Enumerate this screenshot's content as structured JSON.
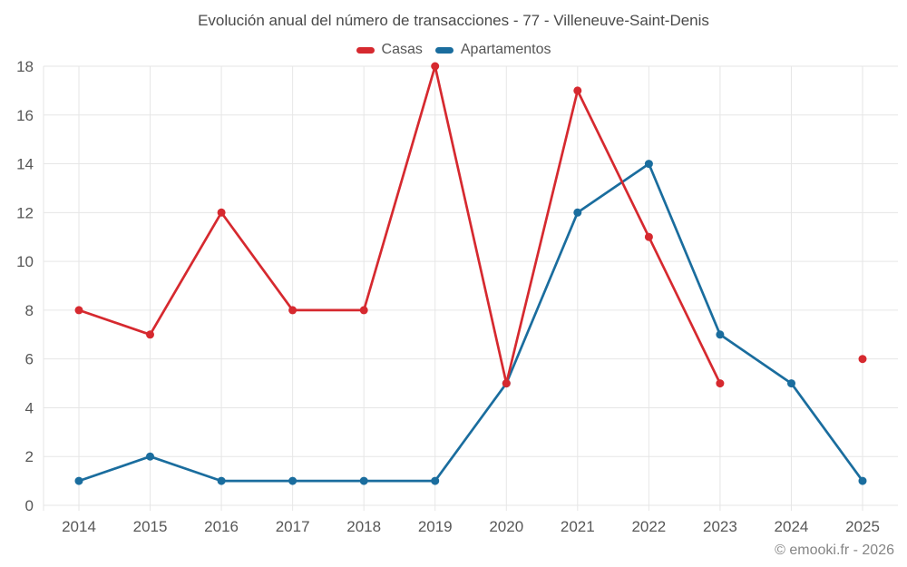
{
  "page": {
    "footer": "© emooki.fr - 2026"
  },
  "chart_data": {
    "type": "line",
    "title": "Evolución anual del número de transacciones - 77 - Villeneuve-Saint-Denis",
    "categories": [
      "2014",
      "2015",
      "2016",
      "2017",
      "2018",
      "2019",
      "2020",
      "2021",
      "2022",
      "2023",
      "2024",
      "2025"
    ],
    "series": [
      {
        "name": "Casas",
        "color": "#d6292f",
        "values": [
          8,
          7,
          12,
          8,
          8,
          18,
          5,
          17,
          11,
          5,
          null,
          6
        ]
      },
      {
        "name": "Apartamentos",
        "color": "#1a6d9e",
        "values": [
          1,
          2,
          1,
          1,
          1,
          1,
          5,
          12,
          14,
          7,
          5,
          1
        ]
      }
    ],
    "xlabel": "",
    "ylabel": "",
    "ylim": [
      0,
      18
    ],
    "ytick_step": 2,
    "grid": true,
    "legend_position": "top",
    "styles": {
      "grid_color": "#e6e6e6",
      "axis_label_color": "#575757",
      "title_color": "#4a4a4a",
      "footer_color": "#858585"
    }
  }
}
